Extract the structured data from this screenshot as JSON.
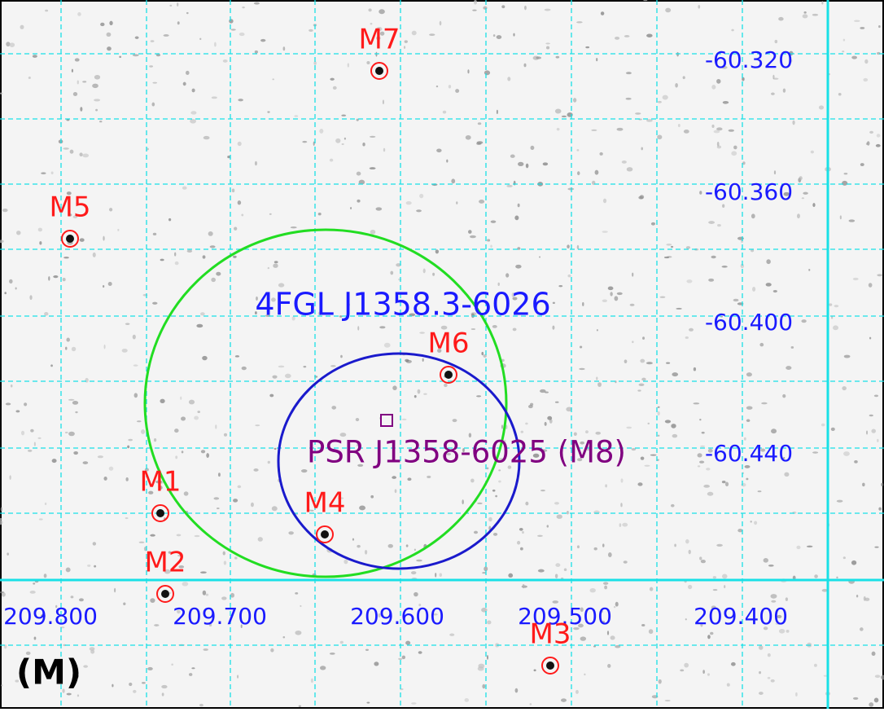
{
  "panel_label": "(M)",
  "ra_labels": [
    "209.800",
    "209.700",
    "209.600",
    "209.500",
    "209.400"
  ],
  "dec_labels": [
    "-60.320",
    "-60.360",
    "-60.400",
    "-60.440"
  ],
  "gamma_source": "4FGL J1358.3-6026",
  "pulsar": "PSR J1358-6025 (M8)",
  "sources": [
    "M1",
    "M2",
    "M3",
    "M4",
    "M5",
    "M6",
    "M7"
  ]
}
